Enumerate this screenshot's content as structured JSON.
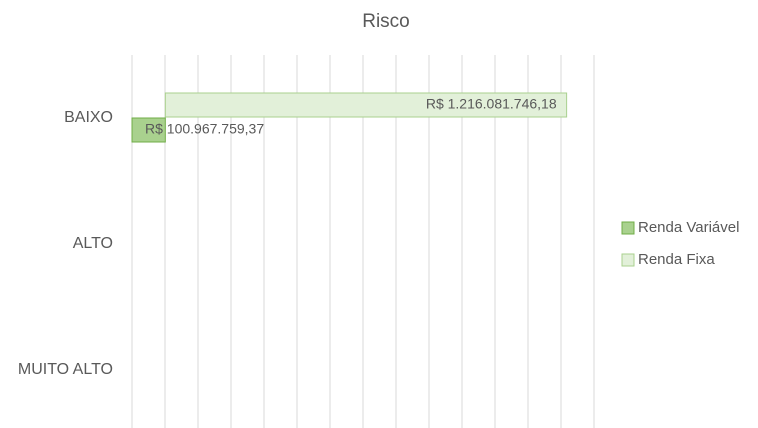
{
  "chart_data": {
    "type": "bar",
    "orientation": "horizontal",
    "stacked": true,
    "title": "Risco",
    "categories": [
      "BAIXO",
      "ALTO",
      "MUITO ALTO"
    ],
    "series": [
      {
        "name": "Renda Variável",
        "color": "#a9d18e",
        "edge": "#70ad47",
        "values": [
          100967759.37,
          null,
          null
        ],
        "value_labels": [
          "R$ 100.967.759,37",
          null,
          null
        ]
      },
      {
        "name": "Renda Fixa",
        "color": "#e2f0d9",
        "edge": "#a9d18e",
        "values": [
          1216081746.18,
          null,
          null
        ],
        "value_labels": [
          "R$ 1.216.081.746,18",
          null,
          null
        ]
      }
    ],
    "xlim": [
      0,
      1400000000
    ],
    "xticks": [
      0,
      100000000,
      200000000,
      300000000,
      400000000,
      500000000,
      600000000,
      700000000,
      800000000,
      900000000,
      1000000000,
      1100000000,
      1200000000,
      1300000000,
      1400000000
    ],
    "grid": true,
    "legend": "right"
  }
}
